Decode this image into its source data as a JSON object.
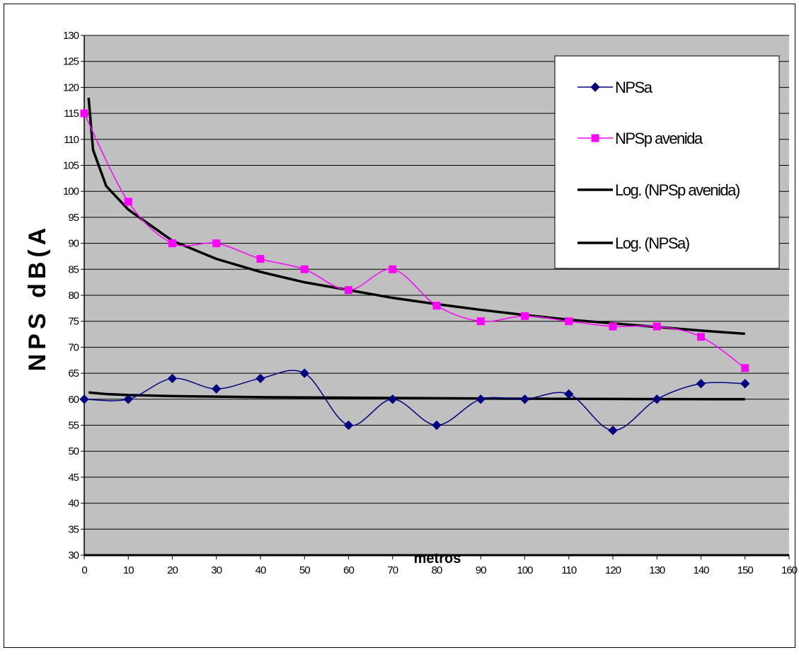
{
  "chart_data": {
    "type": "line",
    "xlabel": "metros",
    "ylabel": "NPS dB(A",
    "xlim": [
      0,
      160
    ],
    "ylim": [
      30,
      130
    ],
    "x_ticks": [
      0,
      10,
      20,
      30,
      40,
      50,
      60,
      70,
      80,
      90,
      100,
      110,
      120,
      130,
      140,
      150,
      160
    ],
    "y_ticks": [
      30,
      35,
      40,
      45,
      50,
      55,
      60,
      65,
      70,
      75,
      80,
      85,
      90,
      95,
      100,
      105,
      110,
      115,
      120,
      125,
      130
    ],
    "grid": "horizontal",
    "legend_position": "top-right",
    "series": [
      {
        "name": "NPSa",
        "color": "#000080",
        "marker": "diamond",
        "smooth": true,
        "x": [
          0,
          10,
          20,
          30,
          40,
          50,
          60,
          70,
          80,
          90,
          100,
          110,
          120,
          130,
          140,
          150
        ],
        "values": [
          60,
          60,
          64,
          62,
          64,
          65,
          55,
          60,
          55,
          60,
          60,
          61,
          54,
          60,
          63,
          63
        ]
      },
      {
        "name": "NPSp avenida",
        "color": "#FF00FF",
        "marker": "square",
        "smooth": true,
        "x": [
          0,
          10,
          20,
          30,
          40,
          50,
          60,
          70,
          80,
          90,
          100,
          110,
          120,
          130,
          140,
          150
        ],
        "values": [
          115,
          98,
          90,
          90,
          87,
          85,
          81,
          85,
          78,
          75,
          76,
          75,
          74,
          74,
          72,
          66
        ]
      },
      {
        "name": "Log. (NPSp avenida)",
        "color": "#000000",
        "marker": "none",
        "trend": "log",
        "x": [
          1,
          2,
          5,
          10,
          20,
          30,
          40,
          50,
          60,
          70,
          80,
          90,
          100,
          110,
          120,
          130,
          140,
          150
        ],
        "values": [
          118,
          108,
          101,
          96.5,
          90.5,
          87,
          84.5,
          82.5,
          81,
          79.5,
          78.3,
          77.2,
          76.2,
          75.3,
          74.6,
          73.9,
          73.2,
          72.6
        ]
      },
      {
        "name": "Log. (NPSa)",
        "color": "#000000",
        "marker": "none",
        "trend": "log",
        "x": [
          1,
          5,
          10,
          20,
          40,
          60,
          80,
          100,
          120,
          150
        ],
        "values": [
          61.3,
          61,
          60.8,
          60.6,
          60.4,
          60.3,
          60.2,
          60.1,
          60.05,
          60
        ]
      }
    ]
  }
}
